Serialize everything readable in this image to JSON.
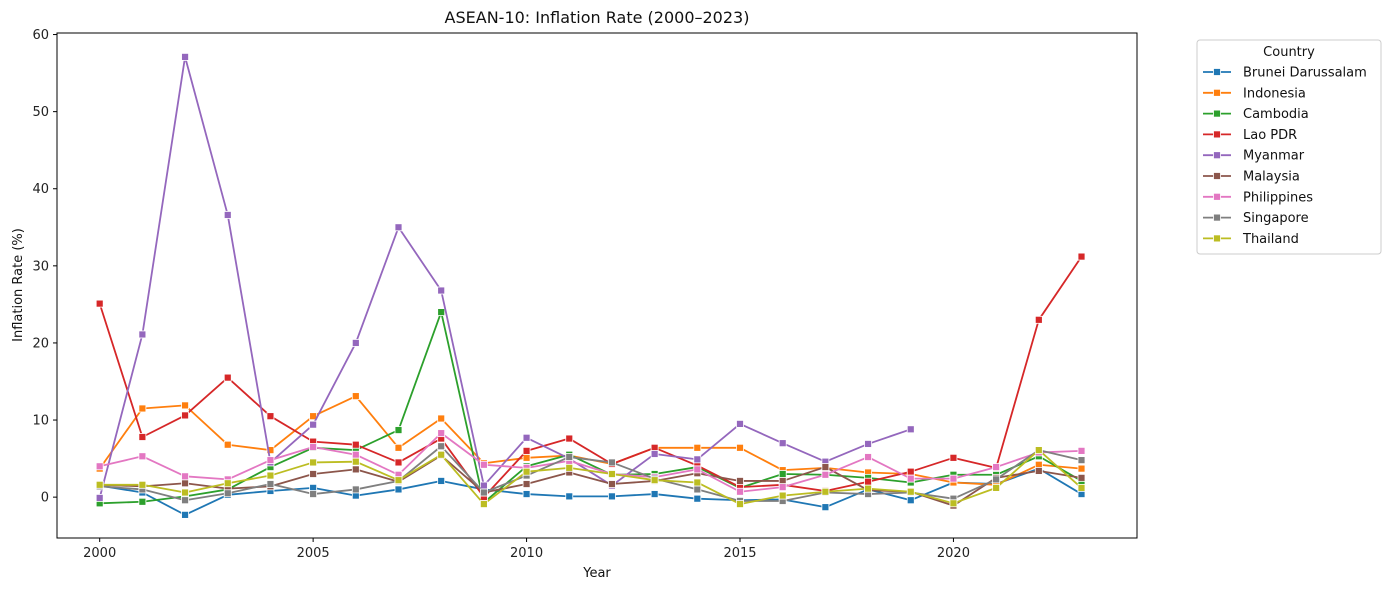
{
  "chart_data": {
    "type": "line",
    "title": "ASEAN-10: Inflation Rate (2000–2023)",
    "xlabel": "Year",
    "ylabel": "Inflation Rate (%)",
    "xlim": [
      1999,
      2024.3
    ],
    "ylim": [
      -5.3,
      60.2
    ],
    "xticks": [
      2000,
      2005,
      2010,
      2015,
      2020
    ],
    "yticks": [
      0,
      10,
      20,
      30,
      40,
      50,
      60
    ],
    "grid": false,
    "legend": {
      "title": "Country",
      "placement": "outside-top-right"
    },
    "x": [
      2000,
      2001,
      2002,
      2003,
      2004,
      2005,
      2006,
      2007,
      2008,
      2009,
      2010,
      2011,
      2012,
      2013,
      2014,
      2015,
      2016,
      2017,
      2018,
      2019,
      2020,
      2021,
      2022,
      2023
    ],
    "series": [
      {
        "name": "Brunei Darussalam",
        "color": "#1f77b4",
        "values": [
          1.5,
          0.6,
          -2.3,
          0.3,
          0.8,
          1.2,
          0.2,
          1.0,
          2.1,
          1.0,
          0.4,
          0.1,
          0.1,
          0.4,
          -0.2,
          -0.4,
          -0.3,
          -1.3,
          1.0,
          -0.4,
          1.9,
          1.7,
          3.7,
          0.4
        ]
      },
      {
        "name": "Indonesia",
        "color": "#ff7f0e",
        "values": [
          3.7,
          11.5,
          11.9,
          6.8,
          6.1,
          10.5,
          13.1,
          6.4,
          10.2,
          4.4,
          5.1,
          5.4,
          4.3,
          6.4,
          6.4,
          6.4,
          3.5,
          3.8,
          3.2,
          3.0,
          1.9,
          1.6,
          4.2,
          3.7
        ]
      },
      {
        "name": "Cambodia",
        "color": "#2ca02c",
        "values": [
          -0.8,
          -0.6,
          0.1,
          1.0,
          3.9,
          6.4,
          6.1,
          8.7,
          24.0,
          -0.7,
          4.0,
          5.5,
          2.9,
          3.0,
          3.9,
          1.2,
          3.0,
          2.9,
          2.5,
          1.9,
          2.9,
          2.9,
          5.3,
          2.1
        ]
      },
      {
        "name": "Lao PDR",
        "color": "#d62728",
        "values": [
          25.1,
          7.8,
          10.6,
          15.5,
          10.5,
          7.2,
          6.8,
          4.5,
          7.6,
          0.0,
          6.0,
          7.6,
          4.3,
          6.4,
          4.1,
          1.3,
          1.6,
          0.8,
          2.0,
          3.3,
          5.1,
          3.8,
          23.0,
          31.2
        ]
      },
      {
        "name": "Myanmar",
        "color": "#9467bd",
        "values": [
          -0.1,
          21.1,
          57.1,
          36.6,
          4.5,
          9.4,
          20.0,
          35.0,
          26.8,
          1.5,
          7.7,
          5.0,
          1.5,
          5.6,
          4.9,
          9.5,
          7.0,
          4.6,
          6.9,
          8.8,
          null,
          null,
          null,
          null
        ]
      },
      {
        "name": "Malaysia",
        "color": "#8c564b",
        "values": [
          1.6,
          1.4,
          1.8,
          1.1,
          1.4,
          3.0,
          3.6,
          2.0,
          5.4,
          0.6,
          1.7,
          3.2,
          1.7,
          2.1,
          3.1,
          2.1,
          2.1,
          3.9,
          0.9,
          0.7,
          -1.1,
          2.5,
          3.4,
          2.5
        ]
      },
      {
        "name": "Philippines",
        "color": "#e377c2",
        "values": [
          4.0,
          5.3,
          2.7,
          2.3,
          4.8,
          6.5,
          5.5,
          2.9,
          8.3,
          4.2,
          3.8,
          4.7,
          3.0,
          2.6,
          3.6,
          0.7,
          1.3,
          2.9,
          5.2,
          2.4,
          2.4,
          3.9,
          5.8,
          6.0
        ]
      },
      {
        "name": "Singapore",
        "color": "#7f7f7f",
        "values": [
          1.4,
          1.0,
          -0.4,
          0.5,
          1.7,
          0.4,
          1.0,
          2.1,
          6.6,
          0.6,
          2.8,
          5.2,
          4.5,
          2.4,
          1.0,
          -0.5,
          -0.5,
          0.6,
          0.4,
          0.6,
          -0.2,
          2.3,
          6.1,
          4.8
        ]
      },
      {
        "name": "Thailand",
        "color": "#bcbd22",
        "values": [
          1.6,
          1.6,
          0.6,
          1.8,
          2.8,
          4.5,
          4.6,
          2.2,
          5.5,
          -0.9,
          3.3,
          3.8,
          3.0,
          2.2,
          1.9,
          -0.9,
          0.2,
          0.7,
          1.1,
          0.7,
          -0.8,
          1.2,
          6.1,
          1.2
        ]
      }
    ]
  }
}
